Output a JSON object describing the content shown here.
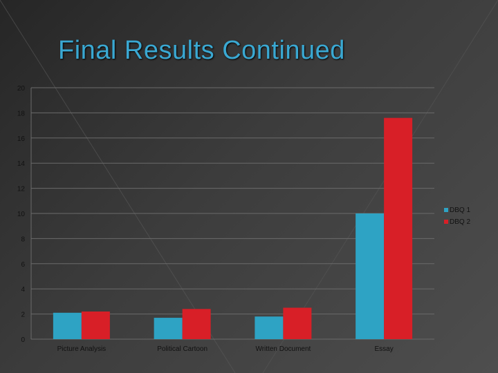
{
  "slide": {
    "title": "Final Results Continued"
  },
  "colors": {
    "background": "#333333",
    "title": "#3aa8d2",
    "series_1": "#2ea3c4",
    "series_2": "#d81f27",
    "gridline": "#6b6b6b",
    "text": "#111111"
  },
  "chart_data": {
    "type": "bar",
    "categories": [
      "Picture Analysis",
      "Political Cartoon",
      "Written Document",
      "Essay"
    ],
    "series": [
      {
        "name": "DBQ 1",
        "values": [
          2.1,
          1.7,
          1.8,
          10.0
        ]
      },
      {
        "name": "DBQ 2",
        "values": [
          2.2,
          2.4,
          2.5,
          17.6
        ]
      }
    ],
    "ylim": [
      0,
      20
    ],
    "yticks": [
      0,
      2,
      4,
      6,
      8,
      10,
      12,
      14,
      16,
      18,
      20
    ],
    "grid": true,
    "legend": "right"
  }
}
